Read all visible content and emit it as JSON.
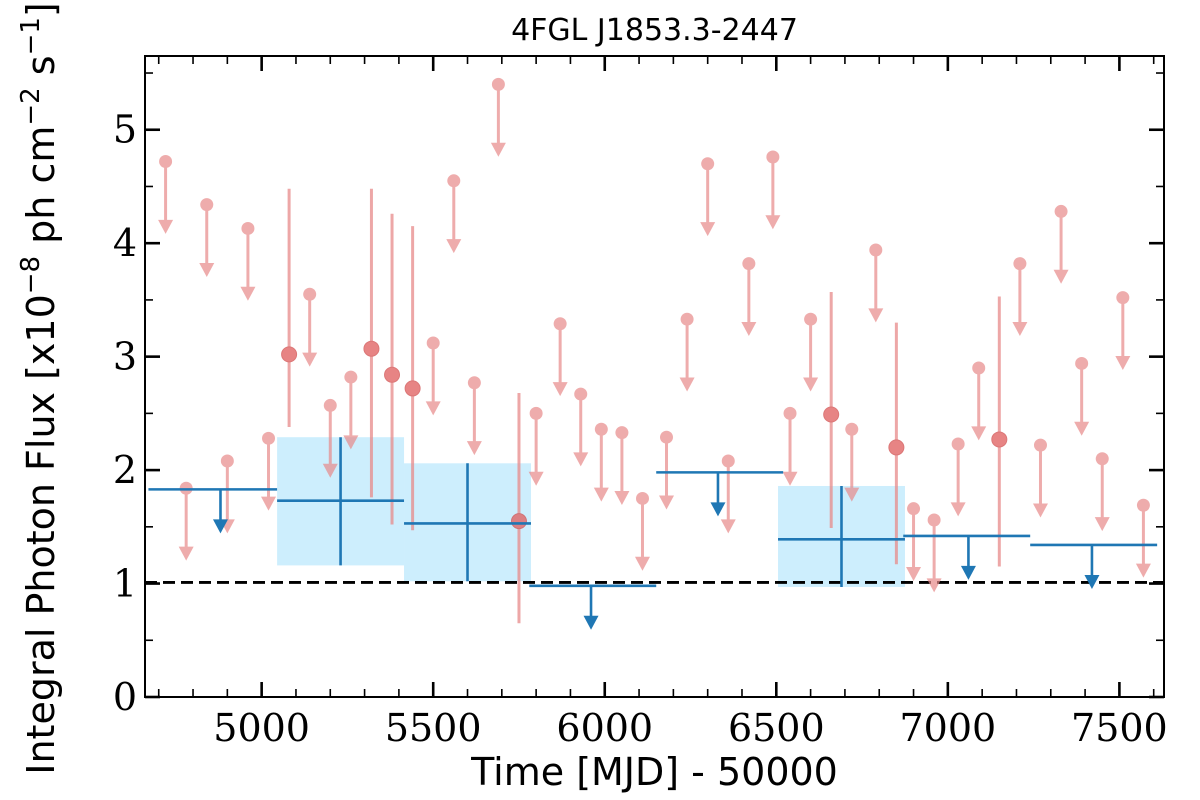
{
  "chart_data": {
    "type": "scatter",
    "title": "4FGL J1853.3-2447",
    "xlabel": "Time [MJD] - 50000",
    "ylabel": "Integral Photon Flux [x10$^{-8}$ ph cm$^{-2}$ s$^{-1}$]",
    "ylabel_parts": {
      "main": "Integral Photon Flux [x10",
      "exp1": "−8",
      "mid": " ph cm",
      "exp2": "−2",
      "mid2": " s",
      "exp3": "−1",
      "end": "]"
    },
    "xlim": [
      4660,
      7630
    ],
    "ylim": [
      0,
      5.65
    ],
    "x_ticks": [
      5000,
      5500,
      6000,
      6500,
      7000,
      7500
    ],
    "x_tick_labels": [
      "5000",
      "5500",
      "6000",
      "6500",
      "7000",
      "7500"
    ],
    "y_ticks": [
      0,
      1,
      2,
      3,
      4,
      5
    ],
    "y_tick_labels": [
      "0",
      "1",
      "2",
      "3",
      "4",
      "5"
    ],
    "reference_line": {
      "y": 1.01,
      "style": "dashed",
      "color": "#000000"
    },
    "grid": false,
    "colors": {
      "short": "#e88a8a",
      "long": "#1f77b4",
      "band": "#cdeefd"
    },
    "series": [
      {
        "role": "short-bin upper limits",
        "points": [
          {
            "x": 4720,
            "y": 4.72
          },
          {
            "x": 4840,
            "y": 4.34
          },
          {
            "x": 4960,
            "y": 4.13
          },
          {
            "x": 4780,
            "y": 1.84
          },
          {
            "x": 4900,
            "y": 2.08
          },
          {
            "x": 5020,
            "y": 2.28
          },
          {
            "x": 5140,
            "y": 3.55
          },
          {
            "x": 5200,
            "y": 2.57
          },
          {
            "x": 5260,
            "y": 2.82
          },
          {
            "x": 5500,
            "y": 3.12
          },
          {
            "x": 5560,
            "y": 4.55
          },
          {
            "x": 5620,
            "y": 2.77
          },
          {
            "x": 5690,
            "y": 5.4
          },
          {
            "x": 5800,
            "y": 2.5
          },
          {
            "x": 5870,
            "y": 3.29
          },
          {
            "x": 5930,
            "y": 2.67
          },
          {
            "x": 5990,
            "y": 2.36
          },
          {
            "x": 6050,
            "y": 2.33
          },
          {
            "x": 6110,
            "y": 1.75
          },
          {
            "x": 6180,
            "y": 2.29
          },
          {
            "x": 6240,
            "y": 3.33
          },
          {
            "x": 6300,
            "y": 4.7
          },
          {
            "x": 6360,
            "y": 2.08
          },
          {
            "x": 6420,
            "y": 3.82
          },
          {
            "x": 6490,
            "y": 4.76
          },
          {
            "x": 6540,
            "y": 2.5
          },
          {
            "x": 6600,
            "y": 3.33
          },
          {
            "x": 6720,
            "y": 2.36
          },
          {
            "x": 6790,
            "y": 3.94
          },
          {
            "x": 6900,
            "y": 1.66
          },
          {
            "x": 6960,
            "y": 1.56
          },
          {
            "x": 7030,
            "y": 2.23
          },
          {
            "x": 7090,
            "y": 2.9
          },
          {
            "x": 7210,
            "y": 3.82
          },
          {
            "x": 7270,
            "y": 2.22
          },
          {
            "x": 7330,
            "y": 4.28
          },
          {
            "x": 7390,
            "y": 2.94
          },
          {
            "x": 7450,
            "y": 2.1
          },
          {
            "x": 7510,
            "y": 3.52
          },
          {
            "x": 7570,
            "y": 1.69
          }
        ]
      },
      {
        "role": "short-bin detections",
        "points": [
          {
            "x": 5080,
            "y": 3.02,
            "yerr_low": 0.64,
            "yerr_high": 1.46
          },
          {
            "x": 5320,
            "y": 3.07,
            "yerr_low": 1.31,
            "yerr_high": 1.41
          },
          {
            "x": 5380,
            "y": 2.84,
            "yerr_low": 1.32,
            "yerr_high": 1.42
          },
          {
            "x": 5440,
            "y": 2.72,
            "yerr_low": 1.25,
            "yerr_high": 1.43
          },
          {
            "x": 5750,
            "y": 1.55,
            "yerr_low": 0.9,
            "yerr_high": 1.13
          },
          {
            "x": 6660,
            "y": 2.49,
            "yerr_low": 1.0,
            "yerr_high": 1.08
          },
          {
            "x": 6850,
            "y": 2.2,
            "yerr_low": 1.03,
            "yerr_high": 1.1
          },
          {
            "x": 7150,
            "y": 2.27,
            "yerr_low": 1.12,
            "yerr_high": 1.26
          }
        ]
      },
      {
        "role": "long-bin upper limits",
        "points": [
          {
            "x0": 4670,
            "x1": 5045,
            "y": 1.83,
            "xc": 4880
          },
          {
            "x0": 5780,
            "x1": 6150,
            "y": 0.98,
            "xc": 5960
          },
          {
            "x0": 6150,
            "x1": 6520,
            "y": 1.98,
            "xc": 6330
          },
          {
            "x0": 6870,
            "x1": 7240,
            "y": 1.42,
            "xc": 7060
          },
          {
            "x0": 7240,
            "x1": 7610,
            "y": 1.34,
            "xc": 7420
          }
        ]
      },
      {
        "role": "long-bin detections",
        "points": [
          {
            "x": 5230,
            "x0": 5045,
            "x1": 5415,
            "y": 1.73,
            "y0": 1.16,
            "y1": 2.29
          },
          {
            "x": 5600,
            "x0": 5415,
            "x1": 5785,
            "y": 1.53,
            "y0": 1.02,
            "y1": 2.06
          },
          {
            "x": 6690,
            "x0": 6505,
            "x1": 6875,
            "y": 1.39,
            "y0": 0.97,
            "y1": 1.86
          }
        ]
      }
    ]
  }
}
